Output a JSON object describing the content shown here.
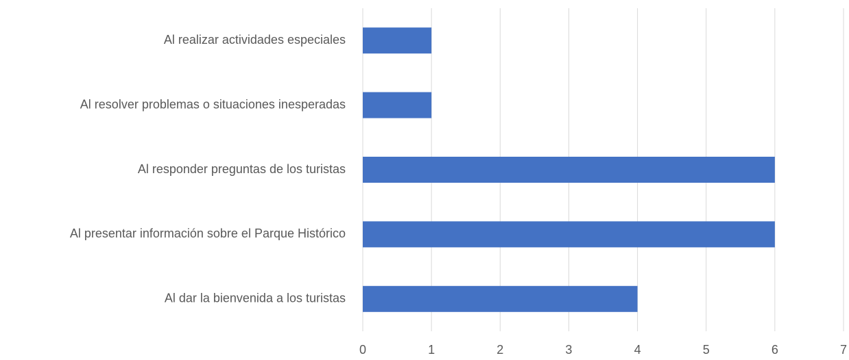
{
  "chart_data": {
    "type": "bar",
    "orientation": "horizontal",
    "categories": [
      "Al realizar actividades especiales",
      "Al resolver problemas o situaciones inesperadas",
      "Al responder preguntas de los turistas",
      "Al presentar información sobre el Parque Histórico",
      "Al dar la bienvenida a los turistas"
    ],
    "values": [
      1,
      1,
      6,
      6,
      4
    ],
    "color": "#4472c4",
    "xlim": [
      0,
      7
    ],
    "xticks": [
      0,
      1,
      2,
      3,
      4,
      5,
      6,
      7
    ],
    "grid": true
  }
}
